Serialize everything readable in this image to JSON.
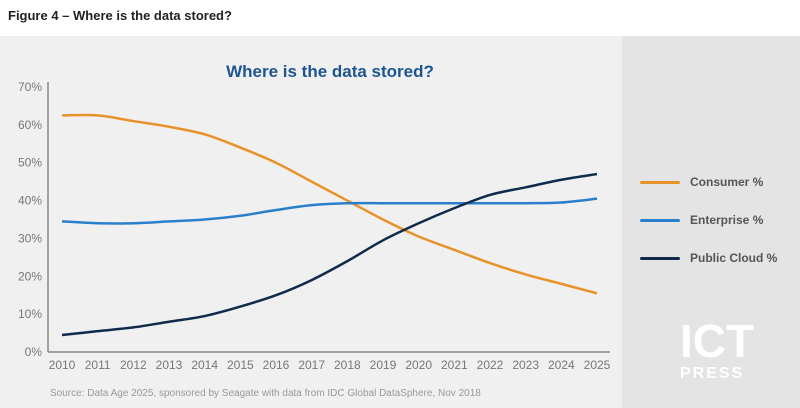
{
  "figure_title": "Figure 4 – Where is the data stored?",
  "source": "Source: Data Age 2025, sponsored by Seagate with data from IDC Global DataSphere, Nov 2018",
  "watermark": {
    "big": "ICT",
    "small": "PRESS"
  },
  "chart_data": {
    "type": "line",
    "title": "Where is the data stored?",
    "xlabel": "",
    "ylabel": "",
    "x": [
      2010,
      2011,
      2012,
      2013,
      2014,
      2015,
      2016,
      2017,
      2018,
      2019,
      2020,
      2021,
      2022,
      2023,
      2024,
      2025
    ],
    "x_tick_labels": [
      "2010",
      "2011",
      "2012",
      "2013",
      "2014",
      "2015",
      "2016",
      "2017",
      "2018",
      "2019",
      "2020",
      "2021",
      "2022",
      "2023",
      "2024",
      "2025"
    ],
    "ylim": [
      0,
      70
    ],
    "y_tick_labels": [
      "0%",
      "10%",
      "20%",
      "30%",
      "40%",
      "50%",
      "60%",
      "70%"
    ],
    "grid": false,
    "legend_position": "right",
    "series": [
      {
        "name": "Consumer %",
        "color": "#e8922a",
        "values": [
          62.5,
          62.5,
          61,
          59.5,
          57.5,
          54,
          50,
          45,
          40,
          35,
          30.5,
          27,
          23.5,
          20.5,
          18,
          15.5
        ]
      },
      {
        "name": "Enterprise %",
        "color": "#2a7fcc",
        "values": [
          34.5,
          34,
          34,
          34.5,
          35,
          36,
          37.5,
          38.8,
          39.3,
          39.3,
          39.3,
          39.3,
          39.3,
          39.3,
          39.5,
          40.5
        ]
      },
      {
        "name": "Public Cloud %",
        "color": "#0f2a4a",
        "values": [
          4.5,
          5.5,
          6.5,
          8,
          9.5,
          12,
          15,
          19,
          24,
          29.5,
          34,
          38,
          41.5,
          43.5,
          45.5,
          47
        ]
      }
    ]
  }
}
